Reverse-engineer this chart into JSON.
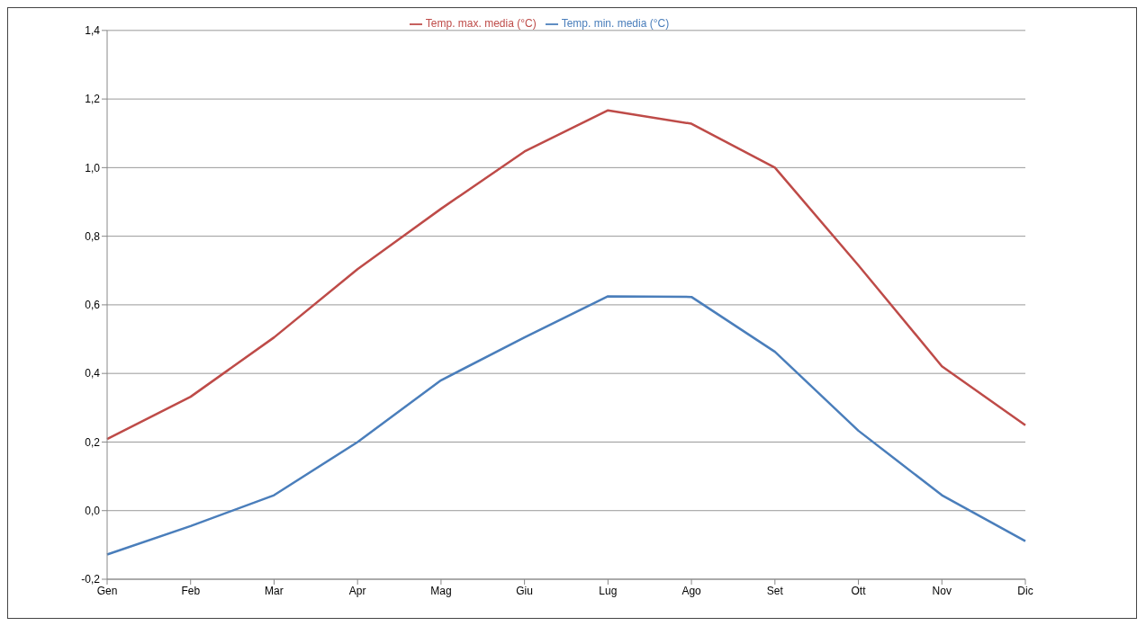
{
  "chart_data": {
    "type": "line",
    "categories": [
      "Gen",
      "Feb",
      "Mar",
      "Apr",
      "Mag",
      "Giu",
      "Lug",
      "Ago",
      "Set",
      "Ott",
      "Nov",
      "Dic"
    ],
    "series": [
      {
        "name": "Temp. min. media (°C)",
        "color": "#4a7ebb",
        "values": [
          -0.128,
          -0.045,
          0.045,
          0.2,
          0.38,
          0.505,
          0.625,
          0.623,
          0.463,
          0.233,
          0.045,
          -0.089
        ]
      },
      {
        "name": "Temp. max. media (°C)",
        "color": "#be4b48",
        "values": [
          0.209,
          0.332,
          0.505,
          0.704,
          0.88,
          1.047,
          1.167,
          1.128,
          1.0,
          0.715,
          0.421,
          0.249
        ]
      }
    ],
    "ylim": [
      -0.2,
      1.4
    ],
    "yticks": [
      {
        "value": -0.2,
        "label": "-0,2"
      },
      {
        "value": 0,
        "label": "0,0"
      },
      {
        "value": 0.2,
        "label": "0,2"
      },
      {
        "value": 0.4,
        "label": "0,4"
      },
      {
        "value": 0.6,
        "label": "0,6"
      },
      {
        "value": 0.8,
        "label": "0,8"
      },
      {
        "value": 1.0,
        "label": "1,0"
      },
      {
        "value": 1.2,
        "label": "1,2"
      },
      {
        "value": 1.4,
        "label": "1,4"
      }
    ],
    "grid": "y",
    "legend": "top",
    "marker": "none",
    "line_style": "solid"
  }
}
